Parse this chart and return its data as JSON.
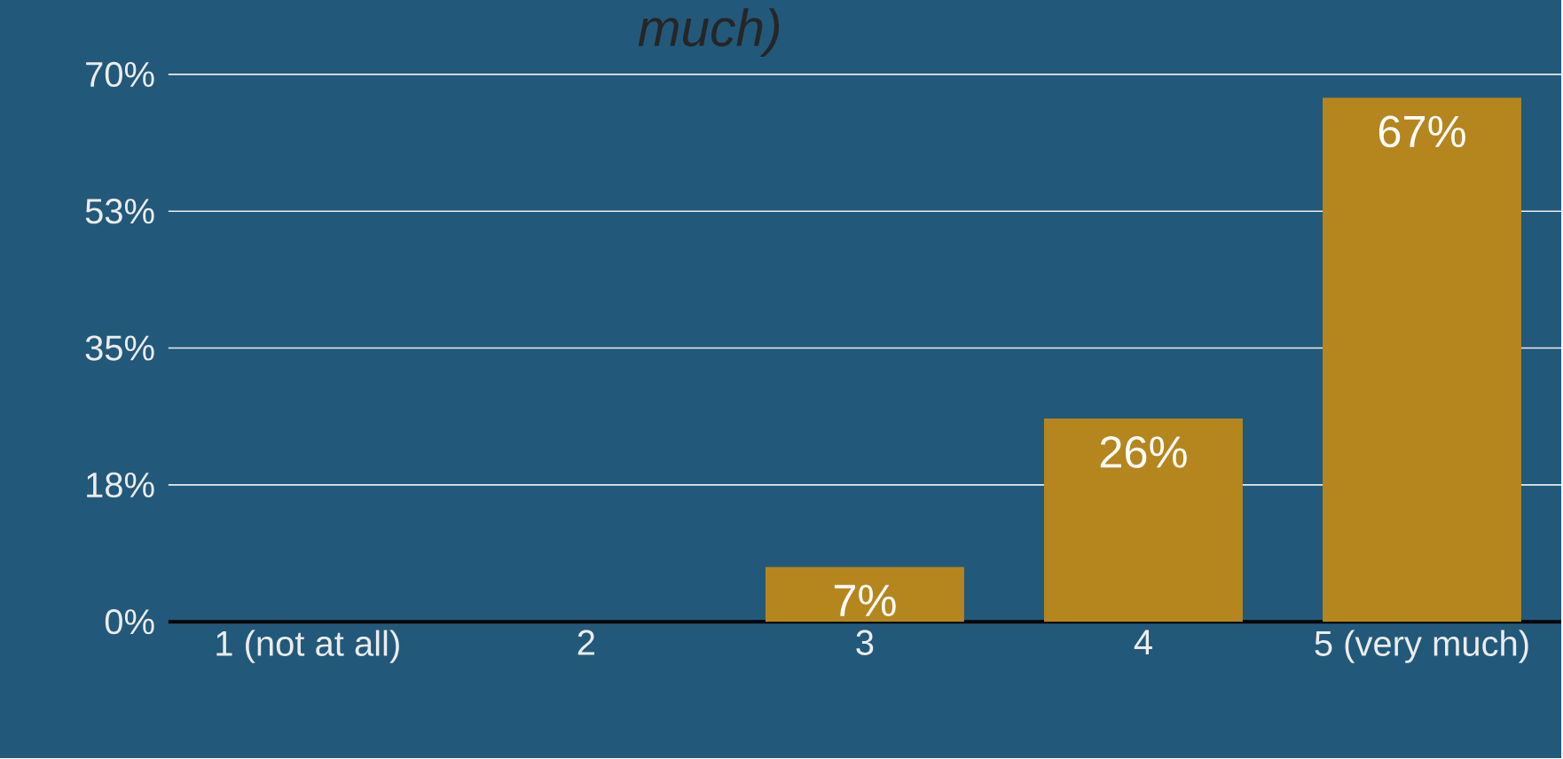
{
  "chart_data": {
    "type": "bar",
    "title": "much)",
    "categories": [
      "1 (not at all)",
      "2",
      "3",
      "4",
      "5 (very much)"
    ],
    "values": [
      0,
      0,
      7,
      26,
      67
    ],
    "value_labels": [
      null,
      null,
      "7%",
      "26%",
      "67%"
    ],
    "color": "#b5861e",
    "ylim": [
      0,
      70
    ],
    "yticks": [
      {
        "value": 0,
        "label": "0%"
      },
      {
        "value": 17.5,
        "label": "18%"
      },
      {
        "value": 35,
        "label": "35%"
      },
      {
        "value": 52.5,
        "label": "53%"
      },
      {
        "value": 70,
        "label": "70%"
      }
    ],
    "grid": "y"
  }
}
